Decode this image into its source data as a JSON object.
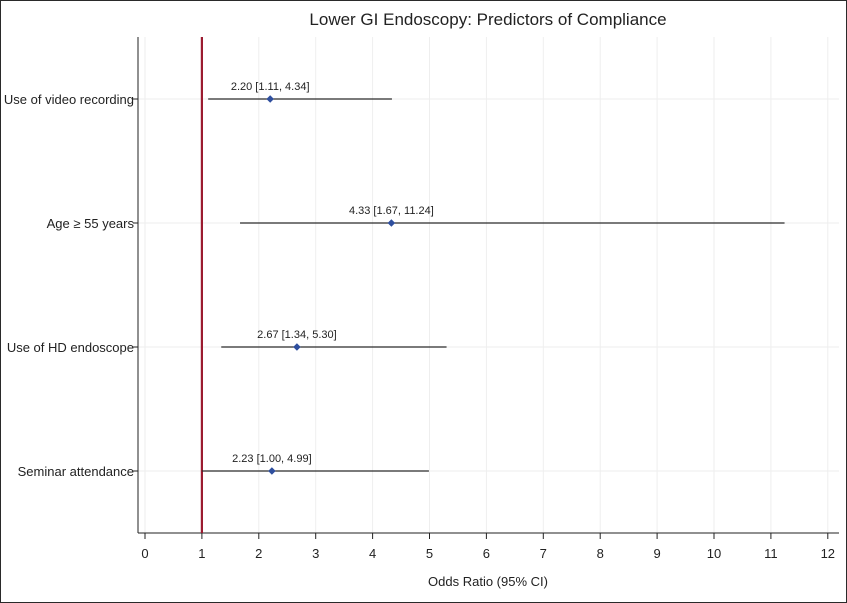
{
  "chart_data": {
    "type": "forest",
    "title": "Lower GI Endoscopy: Predictors of Compliance",
    "xlabel": "Odds Ratio (95% CI)",
    "ylabel": "",
    "xlim": [
      0,
      12
    ],
    "xticks": [
      0,
      1,
      2,
      3,
      4,
      5,
      6,
      7,
      8,
      9,
      10,
      11,
      12
    ],
    "reference_line": 1,
    "reference_color": "#9b1b30",
    "point_color": "#2f4f9e",
    "grid": true,
    "rows": [
      {
        "label": "Use of video recording",
        "or": 2.2,
        "lower": 1.11,
        "upper": 4.34,
        "annotation": "2.20 [1.11, 4.34]"
      },
      {
        "label": "Age ≥ 55 years",
        "or": 4.33,
        "lower": 1.67,
        "upper": 11.24,
        "annotation": "4.33 [1.67, 11.24]"
      },
      {
        "label": "Use of HD endoscope",
        "or": 2.67,
        "lower": 1.34,
        "upper": 5.3,
        "annotation": "2.67 [1.34, 5.30]"
      },
      {
        "label": "Seminar attendance",
        "or": 2.23,
        "lower": 1.0,
        "upper": 4.99,
        "annotation": "2.23 [1.00, 4.99]"
      }
    ]
  }
}
